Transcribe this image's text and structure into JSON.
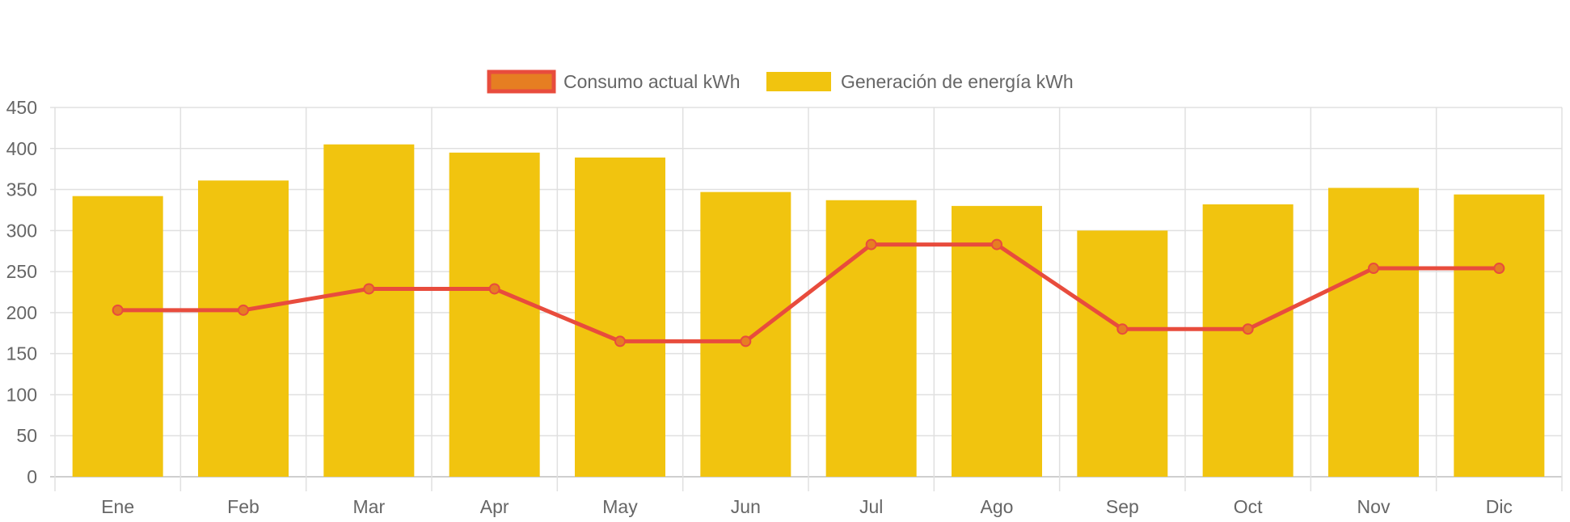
{
  "chart_data": {
    "type": "bar",
    "categories": [
      "Ene",
      "Feb",
      "Mar",
      "Apr",
      "May",
      "Jun",
      "Jul",
      "Ago",
      "Sep",
      "Oct",
      "Nov",
      "Dic"
    ],
    "series": [
      {
        "name": "Consumo actual kWh",
        "kind": "line",
        "color": "#e84c3d",
        "point_fill": "#e67e22",
        "values": [
          203,
          203,
          229,
          229,
          165,
          165,
          283,
          283,
          180,
          180,
          254,
          254
        ]
      },
      {
        "name": "Generación de energía kWh",
        "kind": "bar",
        "color": "#f1c40f",
        "values": [
          342,
          361,
          405,
          395,
          389,
          347,
          337,
          330,
          300,
          332,
          352,
          344
        ]
      }
    ],
    "title": "",
    "xlabel": "",
    "ylabel": "",
    "ylim": [
      0,
      450
    ],
    "yticks": [
      "0",
      "50",
      "100",
      "150",
      "200",
      "250",
      "300",
      "350",
      "400",
      "450"
    ],
    "grid": true,
    "legend": "top-center"
  }
}
